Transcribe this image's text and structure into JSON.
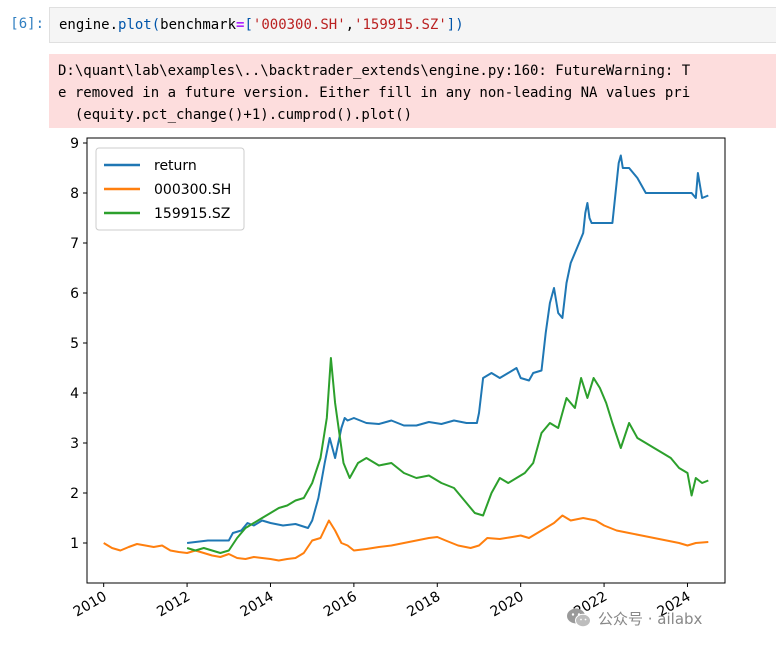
{
  "cell": {
    "prompt": "[6]:",
    "code": {
      "obj": "engine",
      "dot": ".",
      "fn": "plot",
      "open": "(",
      "kw": "benchmark",
      "eq": "=",
      "lbr": "[",
      "s1": "'000300.SH'",
      "comma": ",",
      "s2": "'159915.SZ'",
      "rbr": "]",
      "close": ")"
    },
    "stderr_lines": [
      "D:\\quant\\lab\\examples\\..\\backtrader_extends\\engine.py:160: FutureWarning: T",
      "e removed in a future version. Either fill in any non-leading NA values pri",
      "  (equity.pct_change()+1).cumprod().plot()"
    ]
  },
  "watermark": {
    "text": "公众号 · ailabx",
    "icon": "wechat-icon"
  },
  "chart_data": {
    "type": "line",
    "title": "",
    "xlabel": "",
    "ylabel": "",
    "xlim": [
      2009.6,
      2024.9
    ],
    "ylim": [
      0.2,
      9.1
    ],
    "xticks": [
      2010,
      2012,
      2014,
      2016,
      2018,
      2020,
      2022,
      2024
    ],
    "xtick_labels": [
      "2010",
      "2012",
      "2014",
      "2016",
      "2018",
      "2020",
      "2022",
      "2024"
    ],
    "yticks": [
      1,
      2,
      3,
      4,
      5,
      6,
      7,
      8,
      9
    ],
    "ytick_labels": [
      "1",
      "2",
      "3",
      "4",
      "5",
      "6",
      "7",
      "8",
      "9"
    ],
    "grid": false,
    "legend": "upper-left",
    "series": [
      {
        "name": "return",
        "color": "#1f77b4",
        "x": [
          2012.0,
          2012.5,
          2013.0,
          2013.1,
          2013.3,
          2013.45,
          2013.6,
          2013.8,
          2014.0,
          2014.3,
          2014.6,
          2014.9,
          2015.0,
          2015.15,
          2015.3,
          2015.42,
          2015.55,
          2015.6,
          2015.7,
          2015.78,
          2015.85,
          2016.0,
          2016.3,
          2016.6,
          2016.9,
          2017.2,
          2017.5,
          2017.8,
          2018.1,
          2018.4,
          2018.7,
          2018.95,
          2019.0,
          2019.1,
          2019.3,
          2019.5,
          2019.7,
          2019.9,
          2020.0,
          2020.2,
          2020.3,
          2020.5,
          2020.6,
          2020.7,
          2020.8,
          2020.9,
          2021.0,
          2021.1,
          2021.2,
          2021.3,
          2021.4,
          2021.5,
          2021.55,
          2021.6,
          2021.65,
          2021.7,
          2021.85,
          2022.0,
          2022.2,
          2022.35,
          2022.4,
          2022.45,
          2022.6,
          2022.8,
          2023.0,
          2023.2,
          2023.5,
          2023.8,
          2024.0,
          2024.1,
          2024.2,
          2024.25,
          2024.35,
          2024.5
        ],
        "y": [
          1.0,
          1.05,
          1.05,
          1.2,
          1.25,
          1.4,
          1.35,
          1.45,
          1.4,
          1.35,
          1.38,
          1.3,
          1.45,
          1.9,
          2.6,
          3.1,
          2.7,
          2.9,
          3.3,
          3.5,
          3.45,
          3.5,
          3.4,
          3.38,
          3.45,
          3.35,
          3.35,
          3.42,
          3.38,
          3.45,
          3.4,
          3.4,
          3.6,
          4.3,
          4.4,
          4.3,
          4.4,
          4.5,
          4.3,
          4.25,
          4.4,
          4.45,
          5.2,
          5.8,
          6.1,
          5.6,
          5.5,
          6.2,
          6.6,
          6.8,
          7.0,
          7.2,
          7.6,
          7.8,
          7.5,
          7.4,
          7.4,
          7.4,
          7.4,
          8.6,
          8.75,
          8.5,
          8.5,
          8.3,
          8.0,
          8.0,
          8.0,
          8.0,
          8.0,
          8.0,
          7.9,
          8.4,
          7.9,
          7.95
        ]
      },
      {
        "name": "000300.SH",
        "color": "#ff7f0e",
        "x": [
          2010.0,
          2010.2,
          2010.4,
          2010.6,
          2010.8,
          2011.0,
          2011.2,
          2011.4,
          2011.6,
          2011.8,
          2012.0,
          2012.2,
          2012.4,
          2012.6,
          2012.8,
          2013.0,
          2013.2,
          2013.4,
          2013.6,
          2013.8,
          2014.0,
          2014.2,
          2014.4,
          2014.6,
          2014.8,
          2015.0,
          2015.2,
          2015.4,
          2015.55,
          2015.7,
          2015.85,
          2016.0,
          2016.3,
          2016.6,
          2016.9,
          2017.2,
          2017.5,
          2017.8,
          2018.0,
          2018.2,
          2018.5,
          2018.8,
          2019.0,
          2019.2,
          2019.5,
          2019.8,
          2020.0,
          2020.2,
          2020.5,
          2020.8,
          2021.0,
          2021.2,
          2021.5,
          2021.8,
          2022.0,
          2022.3,
          2022.6,
          2022.9,
          2023.2,
          2023.5,
          2023.8,
          2024.0,
          2024.2,
          2024.5
        ],
        "y": [
          1.0,
          0.9,
          0.85,
          0.92,
          0.98,
          0.95,
          0.92,
          0.95,
          0.85,
          0.82,
          0.8,
          0.85,
          0.8,
          0.75,
          0.72,
          0.78,
          0.7,
          0.68,
          0.72,
          0.7,
          0.68,
          0.65,
          0.68,
          0.7,
          0.8,
          1.05,
          1.1,
          1.45,
          1.25,
          1.0,
          0.95,
          0.85,
          0.88,
          0.92,
          0.95,
          1.0,
          1.05,
          1.1,
          1.12,
          1.05,
          0.95,
          0.9,
          0.95,
          1.1,
          1.08,
          1.12,
          1.15,
          1.1,
          1.25,
          1.4,
          1.55,
          1.45,
          1.5,
          1.45,
          1.35,
          1.25,
          1.2,
          1.15,
          1.1,
          1.05,
          1.0,
          0.95,
          1.0,
          1.02
        ]
      },
      {
        "name": "159915.SZ",
        "color": "#2ca02c",
        "x": [
          2012.0,
          2012.2,
          2012.4,
          2012.6,
          2012.8,
          2013.0,
          2013.2,
          2013.4,
          2013.6,
          2013.8,
          2014.0,
          2014.2,
          2014.4,
          2014.6,
          2014.8,
          2015.0,
          2015.2,
          2015.35,
          2015.45,
          2015.55,
          2015.65,
          2015.75,
          2015.9,
          2016.1,
          2016.3,
          2016.6,
          2016.9,
          2017.2,
          2017.5,
          2017.8,
          2018.1,
          2018.4,
          2018.7,
          2018.9,
          2019.1,
          2019.3,
          2019.5,
          2019.7,
          2019.9,
          2020.1,
          2020.3,
          2020.5,
          2020.7,
          2020.9,
          2021.1,
          2021.3,
          2021.45,
          2021.6,
          2021.75,
          2021.9,
          2022.05,
          2022.2,
          2022.4,
          2022.6,
          2022.8,
          2023.0,
          2023.2,
          2023.4,
          2023.6,
          2023.8,
          2024.0,
          2024.1,
          2024.2,
          2024.35,
          2024.5
        ],
        "y": [
          0.9,
          0.85,
          0.9,
          0.85,
          0.8,
          0.85,
          1.1,
          1.3,
          1.4,
          1.5,
          1.6,
          1.7,
          1.75,
          1.85,
          1.9,
          2.2,
          2.7,
          3.5,
          4.7,
          3.8,
          3.2,
          2.6,
          2.3,
          2.6,
          2.7,
          2.55,
          2.6,
          2.4,
          2.3,
          2.35,
          2.2,
          2.1,
          1.8,
          1.6,
          1.55,
          2.0,
          2.3,
          2.2,
          2.3,
          2.4,
          2.6,
          3.2,
          3.4,
          3.3,
          3.9,
          3.7,
          4.3,
          3.9,
          4.3,
          4.1,
          3.8,
          3.4,
          2.9,
          3.4,
          3.1,
          3.0,
          2.9,
          2.8,
          2.7,
          2.5,
          2.4,
          1.95,
          2.3,
          2.2,
          2.25
        ]
      }
    ]
  }
}
